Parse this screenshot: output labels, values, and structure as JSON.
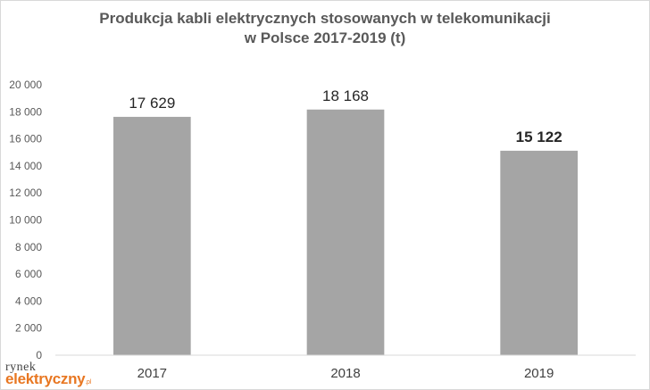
{
  "chart_data": {
    "type": "bar",
    "title_line1": "Produkcja kabli elektrycznych stosowanych w telekomunikacji",
    "title_line2": "w Polsce 2017-2019 (t)",
    "categories": [
      "2017",
      "2018",
      "2019"
    ],
    "values": [
      17629,
      18168,
      15122
    ],
    "value_labels": [
      "17 629",
      "18 168",
      "15 122"
    ],
    "bold_labels": [
      false,
      false,
      true
    ],
    "ylim": [
      0,
      20000
    ],
    "yticks": [
      0,
      2000,
      4000,
      6000,
      8000,
      10000,
      12000,
      14000,
      16000,
      18000,
      20000
    ],
    "ytick_labels": [
      "0",
      "2 000",
      "4 000",
      "6 000",
      "8 000",
      "10 000",
      "12 000",
      "14 000",
      "16 000",
      "18 000",
      "20 000"
    ],
    "grid": false,
    "bar_color": "#a5a5a5",
    "xlabel": "",
    "ylabel": ""
  },
  "logo": {
    "top": "rynek",
    "bottom": "elektryczny",
    "suffix": ".pl"
  }
}
